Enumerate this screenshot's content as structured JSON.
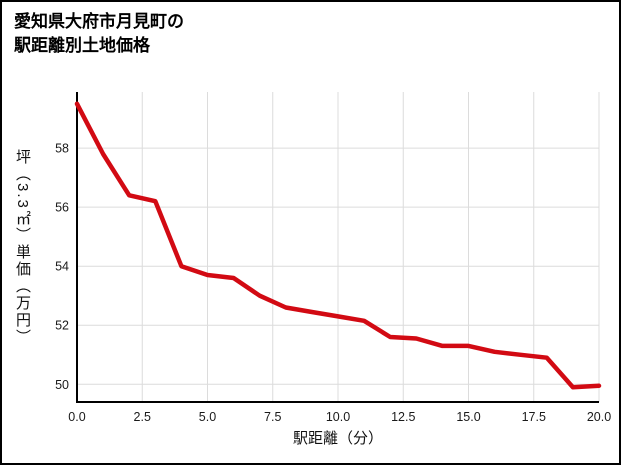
{
  "title": {
    "line1": "愛知県大府市月見町の",
    "line2": "駅距離別土地価格"
  },
  "chart_data": {
    "type": "line",
    "title": "愛知県大府市月見町の駅距離別土地価格",
    "xlabel": "駅距離（分）",
    "ylabel": "坪（3.3㎡）単価（万円）",
    "x": [
      0,
      1,
      2,
      3,
      4,
      5,
      6,
      7,
      8,
      9,
      10,
      11,
      12,
      13,
      14,
      15,
      16,
      17,
      18,
      19,
      20
    ],
    "values": [
      59.5,
      57.8,
      56.4,
      56.2,
      54.0,
      53.7,
      53.6,
      53.0,
      52.6,
      52.45,
      52.3,
      52.15,
      51.6,
      51.55,
      51.3,
      51.3,
      51.1,
      51.0,
      50.9,
      49.9,
      49.95
    ],
    "xlim": [
      0,
      20
    ],
    "ylim": [
      49.4,
      59.9
    ],
    "x_ticks": [
      0,
      2.5,
      5,
      7.5,
      10,
      12.5,
      15,
      17.5,
      20
    ],
    "x_tick_labels": [
      "0.0",
      "2.5",
      "5.0",
      "7.5",
      "10.0",
      "12.5",
      "15.0",
      "17.5",
      "20.0"
    ],
    "y_ticks": [
      50,
      52,
      54,
      56,
      58
    ],
    "y_tick_labels": [
      "50",
      "52",
      "54",
      "56",
      "58"
    ],
    "legend": null,
    "grid": true,
    "line_color": "#d20a13",
    "grid_color": "#dcdcdc",
    "axis_color": "#000000",
    "tick_label_color": "#1a1a1a",
    "background": "#ffffff"
  }
}
